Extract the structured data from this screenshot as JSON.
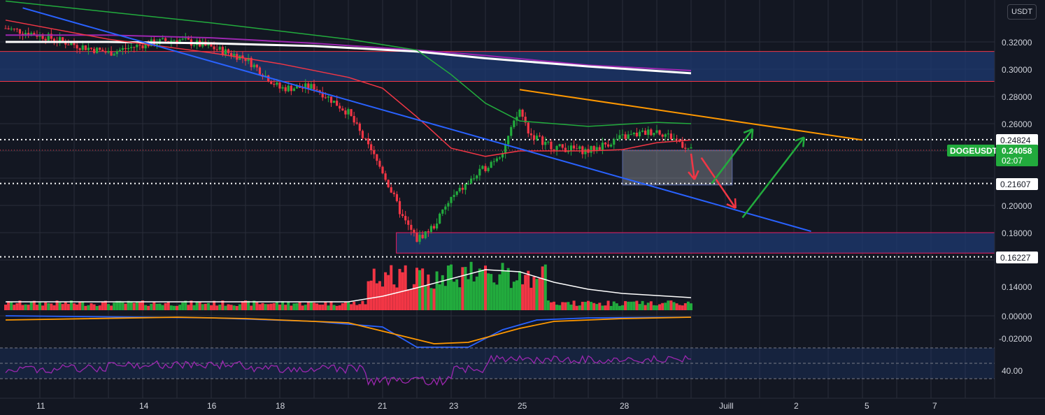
{
  "currency": "USDT",
  "symbol": "DOGEUSDT",
  "colors": {
    "up": "#22ab3d",
    "down": "#f23645",
    "background": "#131722",
    "grid": "#2a2e39",
    "ma_red": "#f23645",
    "ma_green": "#22ab3d",
    "ma_white": "#ffffff",
    "ma_purple": "#9c27b0",
    "trend_blue": "#2962ff",
    "trend_orange": "#ff9800",
    "zone_fill": "#1e3a72"
  },
  "chart_data": {
    "type": "candlestick",
    "price_ticks": [
      "0.32000",
      "0.30000",
      "0.28000",
      "0.26000",
      "0.20000",
      "0.18000"
    ],
    "price_labels": {
      "level_upper": "0.24824",
      "level_middle": "0.21607",
      "level_lower": "0.16227",
      "last_price": "0.24058",
      "countdown": "02:07"
    },
    "x_ticks": [
      "11",
      "14",
      "16",
      "18",
      "21",
      "23",
      "25",
      "28",
      "Juill",
      "2",
      "5",
      "7"
    ],
    "indicator_ticks": [
      "0.14000",
      "0.00000",
      "-0.02000",
      "40.00"
    ],
    "price_range": [
      0.155,
      0.335
    ],
    "close_path": [
      [
        10,
        0.33
      ],
      [
        11,
        0.325
      ],
      [
        12,
        0.318
      ],
      [
        13,
        0.312
      ],
      [
        14,
        0.318
      ],
      [
        15,
        0.322
      ],
      [
        16,
        0.316
      ],
      [
        17,
        0.308
      ],
      [
        18,
        0.286
      ],
      [
        19,
        0.287
      ],
      [
        20,
        0.268
      ],
      [
        21,
        0.225
      ],
      [
        21.6,
        0.19
      ],
      [
        22,
        0.175
      ],
      [
        22.5,
        0.185
      ],
      [
        23,
        0.205
      ],
      [
        24,
        0.228
      ],
      [
        24.5,
        0.24
      ],
      [
        25,
        0.27
      ],
      [
        25.3,
        0.252
      ],
      [
        26,
        0.243
      ],
      [
        27,
        0.24
      ],
      [
        28,
        0.25
      ],
      [
        29,
        0.255
      ],
      [
        29.6,
        0.248
      ],
      [
        30,
        0.24
      ]
    ],
    "key_levels": [
      0.24824,
      0.21607,
      0.16227
    ],
    "resistance_zone": [
      0.291,
      0.313
    ],
    "support_zone": [
      0.165,
      0.18
    ],
    "consolidation_box": {
      "x": [
        28.0,
        31.2
      ],
      "y": [
        0.215,
        0.2405
      ]
    },
    "trendlines": [
      {
        "color": "blue",
        "points": [
          [
            10.5,
            0.345
          ],
          [
            33.5,
            0.181
          ]
        ]
      },
      {
        "color": "orange",
        "points": [
          [
            25.0,
            0.285
          ],
          [
            35.0,
            0.248
          ]
        ]
      }
    ],
    "moving_averages": {
      "red": [
        [
          10,
          0.336
        ],
        [
          13,
          0.322
        ],
        [
          16,
          0.312
        ],
        [
          18,
          0.304
        ],
        [
          20,
          0.294
        ],
        [
          21,
          0.286
        ],
        [
          22,
          0.265
        ],
        [
          23,
          0.242
        ],
        [
          24,
          0.236
        ],
        [
          25,
          0.24
        ],
        [
          27,
          0.24
        ],
        [
          28,
          0.241
        ],
        [
          29,
          0.246
        ],
        [
          30,
          0.248
        ]
      ],
      "green": [
        [
          10,
          0.35
        ],
        [
          13,
          0.342
        ],
        [
          16,
          0.334
        ],
        [
          19,
          0.325
        ],
        [
          20,
          0.322
        ],
        [
          22,
          0.314
        ],
        [
          23,
          0.296
        ],
        [
          24,
          0.275
        ],
        [
          25,
          0.262
        ],
        [
          27,
          0.258
        ],
        [
          29,
          0.261
        ],
        [
          30,
          0.26
        ]
      ],
      "white": [
        [
          10,
          0.32
        ],
        [
          13,
          0.32
        ],
        [
          16,
          0.319
        ],
        [
          19,
          0.317
        ],
        [
          22,
          0.313
        ],
        [
          24,
          0.308
        ],
        [
          27,
          0.302
        ],
        [
          30,
          0.297
        ]
      ],
      "purple": [
        [
          10,
          0.325
        ],
        [
          13,
          0.325
        ],
        [
          16,
          0.323
        ],
        [
          19,
          0.319
        ],
        [
          22,
          0.314
        ],
        [
          24,
          0.31
        ],
        [
          27,
          0.303
        ],
        [
          30,
          0.299
        ]
      ]
    },
    "projections": [
      {
        "color": "red",
        "points": [
          [
            30.0,
            0.238
          ],
          [
            30.1,
            0.219
          ]
        ]
      },
      {
        "color": "red",
        "points": [
          [
            30.3,
            0.235
          ],
          [
            31.3,
            0.198
          ]
        ]
      },
      {
        "color": "green",
        "points": [
          [
            30.6,
            0.216
          ],
          [
            31.8,
            0.256
          ]
        ]
      },
      {
        "color": "green",
        "points": [
          [
            31.5,
            0.191
          ],
          [
            33.3,
            0.25
          ]
        ]
      }
    ]
  }
}
